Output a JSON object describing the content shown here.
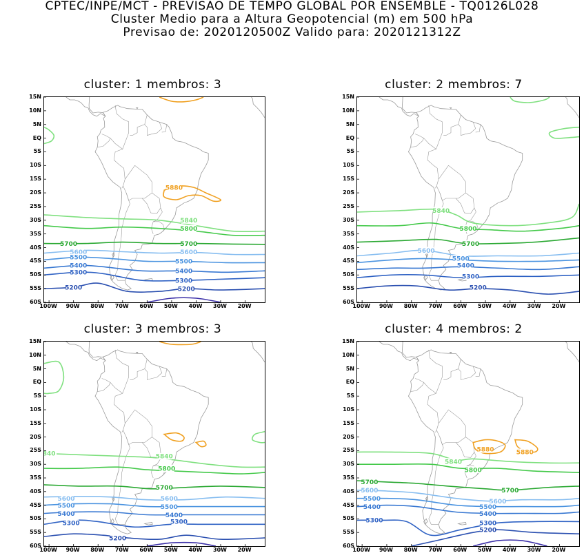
{
  "header": {
    "line1": "CPTEC/INPE/MCT - PREVISAO DE TEMPO GLOBAL POR ENSEMBLE - TQ0126L028",
    "line2": "Cluster Medio para a Altura Geopotencial (m) em 500 hPa",
    "line3": "Previsao de: 2020120500Z   Valido para: 2020121312Z"
  },
  "axes": {
    "lat_labels": [
      "15N",
      "10N",
      "5N",
      "EQ",
      "5S",
      "10S",
      "15S",
      "20S",
      "25S",
      "30S",
      "35S",
      "40S",
      "45S",
      "50S",
      "55S",
      "60S"
    ],
    "lon_labels": [
      "100W",
      "90W",
      "80W",
      "70W",
      "60W",
      "50W",
      "40W",
      "30W",
      "20W"
    ]
  },
  "colors": {
    "c5200": "#2a4fb0",
    "c5300": "#2f62c4",
    "c5400": "#3878d2",
    "c5500": "#4a93e0",
    "c5600": "#86bdf0",
    "c5700": "#2aa832",
    "c5800": "#44c94a",
    "c5840": "#7fe07f",
    "c5880": "#f0a020",
    "deep": "#3b2fa8",
    "coast": "#9a9a9a"
  },
  "panels": [
    {
      "title": "cluster: 1   membros: 3",
      "labels": [
        {
          "text": "5880",
          "lat": -18,
          "lon": -49,
          "color": "c5880"
        },
        {
          "text": "5840",
          "lat": -30,
          "lon": -43,
          "color": "c5840"
        },
        {
          "text": "5800",
          "lat": -33,
          "lon": -43,
          "color": "c5800"
        },
        {
          "text": "5700",
          "lat": -38.5,
          "lon": -92,
          "color": "c5700"
        },
        {
          "text": "5700",
          "lat": -38.5,
          "lon": -43,
          "color": "c5700"
        },
        {
          "text": "5600",
          "lat": -41.5,
          "lon": -88,
          "color": "c5600"
        },
        {
          "text": "5600",
          "lat": -41.5,
          "lon": -43,
          "color": "c5600"
        },
        {
          "text": "5500",
          "lat": -43.5,
          "lon": -88,
          "color": "c5500"
        },
        {
          "text": "5500",
          "lat": -45,
          "lon": -45,
          "color": "c5500"
        },
        {
          "text": "5400",
          "lat": -46.5,
          "lon": -88,
          "color": "c5400"
        },
        {
          "text": "5400",
          "lat": -48.5,
          "lon": -45,
          "color": "c5400"
        },
        {
          "text": "5300",
          "lat": -49,
          "lon": -88,
          "color": "c5300"
        },
        {
          "text": "5300",
          "lat": -52,
          "lon": -45,
          "color": "c5300"
        },
        {
          "text": "5200",
          "lat": -54.5,
          "lon": -90,
          "color": "c5200"
        },
        {
          "text": "5200",
          "lat": -55,
          "lon": -44,
          "color": "c5200"
        }
      ]
    },
    {
      "title": "cluster: 2   membros: 7",
      "labels": [
        {
          "text": "5840",
          "lat": -26.5,
          "lon": -68,
          "color": "c5840"
        },
        {
          "text": "5800",
          "lat": -33,
          "lon": -57,
          "color": "c5800"
        },
        {
          "text": "5700",
          "lat": -38.5,
          "lon": -56,
          "color": "c5700"
        },
        {
          "text": "5600",
          "lat": -41,
          "lon": -74,
          "color": "c5600"
        },
        {
          "text": "5500",
          "lat": -44,
          "lon": -60,
          "color": "c5500"
        },
        {
          "text": "5400",
          "lat": -46.5,
          "lon": -58,
          "color": "c5400"
        },
        {
          "text": "5300",
          "lat": -50.5,
          "lon": -56,
          "color": "c5300"
        },
        {
          "text": "5200",
          "lat": -54.5,
          "lon": -53,
          "color": "c5200"
        }
      ]
    },
    {
      "title": "cluster: 3   membros: 3",
      "labels": [
        {
          "text": "840",
          "lat": -26,
          "lon": -100,
          "color": "c5840"
        },
        {
          "text": "5840",
          "lat": -27,
          "lon": -53,
          "color": "c5840"
        },
        {
          "text": "5800",
          "lat": -31.5,
          "lon": -52,
          "color": "c5800"
        },
        {
          "text": "5700",
          "lat": -38.5,
          "lon": -53,
          "color": "c5700"
        },
        {
          "text": "5600",
          "lat": -42.5,
          "lon": -93,
          "color": "c5600"
        },
        {
          "text": "5600",
          "lat": -42.5,
          "lon": -51,
          "color": "c5600"
        },
        {
          "text": "5500",
          "lat": -45,
          "lon": -93,
          "color": "c5500"
        },
        {
          "text": "5500",
          "lat": -45.5,
          "lon": -51,
          "color": "c5500"
        },
        {
          "text": "5400",
          "lat": -48,
          "lon": -93,
          "color": "c5400"
        },
        {
          "text": "5400",
          "lat": -48.5,
          "lon": -49,
          "color": "c5400"
        },
        {
          "text": "5300",
          "lat": -51.5,
          "lon": -91,
          "color": "c5300"
        },
        {
          "text": "5300",
          "lat": -51,
          "lon": -47,
          "color": "c5300"
        },
        {
          "text": "5200",
          "lat": -57,
          "lon": -72,
          "color": "c5200"
        }
      ]
    },
    {
      "title": "cluster: 4   membros: 2",
      "labels": [
        {
          "text": "5880",
          "lat": -24.5,
          "lon": -50,
          "color": "c5880"
        },
        {
          "text": "5880",
          "lat": -25.5,
          "lon": -34,
          "color": "c5880"
        },
        {
          "text": "5840",
          "lat": -29,
          "lon": -63,
          "color": "c5840"
        },
        {
          "text": "5800",
          "lat": -32,
          "lon": -55,
          "color": "c5800"
        },
        {
          "text": "5700",
          "lat": -36.5,
          "lon": -97,
          "color": "c5700"
        },
        {
          "text": "5700",
          "lat": -39.5,
          "lon": -40,
          "color": "c5700"
        },
        {
          "text": "5600",
          "lat": -39.5,
          "lon": -97,
          "color": "c5600"
        },
        {
          "text": "5600",
          "lat": -43.5,
          "lon": -45,
          "color": "c5600"
        },
        {
          "text": "5500",
          "lat": -42.5,
          "lon": -96,
          "color": "c5500"
        },
        {
          "text": "5500",
          "lat": -45.5,
          "lon": -49,
          "color": "c5500"
        },
        {
          "text": "5400",
          "lat": -45.5,
          "lon": -96,
          "color": "c5400"
        },
        {
          "text": "5400",
          "lat": -48,
          "lon": -49,
          "color": "c5400"
        },
        {
          "text": "5300",
          "lat": -50.5,
          "lon": -95,
          "color": "c5300"
        },
        {
          "text": "5300",
          "lat": -51.5,
          "lon": -49,
          "color": "c5300"
        },
        {
          "text": "5200",
          "lat": -54,
          "lon": -49,
          "color": "c5200"
        }
      ]
    }
  ]
}
